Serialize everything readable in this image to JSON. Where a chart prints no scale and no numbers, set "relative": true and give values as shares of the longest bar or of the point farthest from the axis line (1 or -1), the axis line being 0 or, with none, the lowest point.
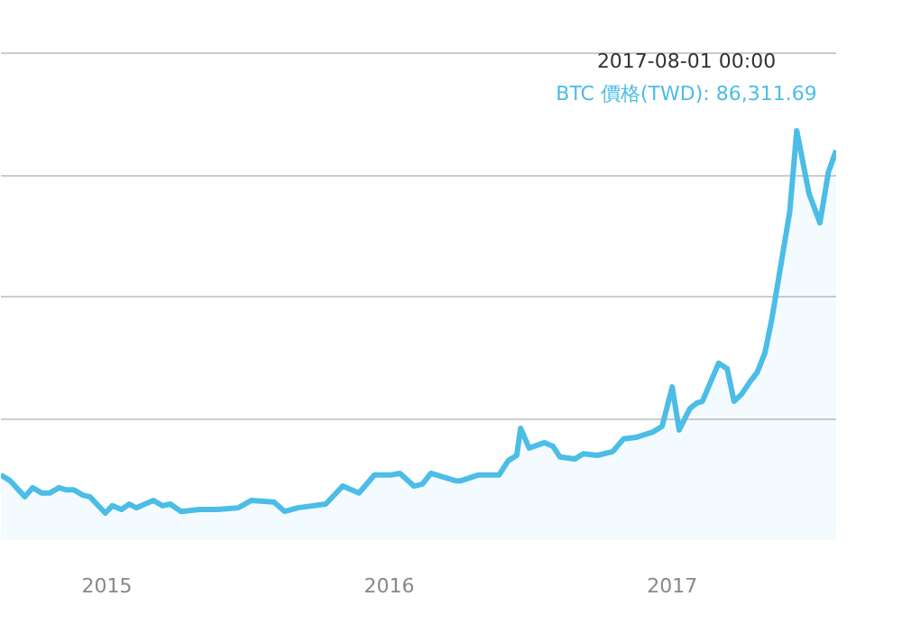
{
  "chart_data": {
    "type": "area",
    "relative": true,
    "grid": "y",
    "marker": "none",
    "line_style": "solid",
    "xlim": [
      "2014-08-17",
      "2017-08-01"
    ],
    "xticks": [
      {
        "value": "2015-01-01",
        "label": "2015"
      },
      {
        "value": "2016-01-01",
        "label": "2016"
      },
      {
        "value": "2017-01-01",
        "label": "2017"
      }
    ],
    "annotations": [
      "2017-08-01 00:00",
      "BTC 價格(TWD): 86,311.69"
    ],
    "x": [
      "2014-08-17",
      "2014-08-29",
      "2014-09-17",
      "2014-09-27",
      "2014-10-09",
      "2014-10-19",
      "2014-10-31",
      "2014-11-09",
      "2014-11-19",
      "2014-12-01",
      "2014-12-10",
      "2014-12-30",
      "2015-01-08",
      "2015-01-20",
      "2015-01-30",
      "2015-02-08",
      "2015-03-02",
      "2015-03-14",
      "2015-03-24",
      "2015-04-07",
      "2015-05-01",
      "2015-05-25",
      "2015-06-20",
      "2015-07-07",
      "2015-08-05",
      "2015-08-19",
      "2015-09-05",
      "2015-10-11",
      "2015-11-02",
      "2015-11-23",
      "2015-12-13",
      "2016-01-03",
      "2016-01-15",
      "2016-02-02",
      "2016-02-13",
      "2016-02-24",
      "2016-03-27",
      "2016-04-03",
      "2016-04-25",
      "2016-05-22",
      "2016-06-03",
      "2016-06-14",
      "2016-06-19",
      "2016-06-30",
      "2016-07-20",
      "2016-07-31",
      "2016-08-09",
      "2016-08-28",
      "2016-09-08",
      "2016-09-26",
      "2016-10-16",
      "2016-10-30",
      "2016-11-15",
      "2016-12-07",
      "2016-12-19",
      "2017-01-01",
      "2017-01-10",
      "2017-01-24",
      "2017-02-02",
      "2017-02-09",
      "2017-03-02",
      "2017-03-13",
      "2017-03-22",
      "2017-04-01",
      "2017-04-12",
      "2017-04-21",
      "2017-05-01",
      "2017-05-10",
      "2017-06-02",
      "2017-06-11",
      "2017-06-27",
      "2017-07-11",
      "2017-07-22",
      "2017-08-01"
    ],
    "series": [
      {
        "color": "#4bbde6",
        "values": [
          0.159,
          0.145,
          0.106,
          0.128,
          0.115,
          0.115,
          0.128,
          0.123,
          0.123,
          0.11,
          0.106,
          0.066,
          0.084,
          0.075,
          0.088,
          0.079,
          0.097,
          0.084,
          0.088,
          0.07,
          0.075,
          0.075,
          0.079,
          0.097,
          0.093,
          0.07,
          0.079,
          0.088,
          0.132,
          0.115,
          0.159,
          0.159,
          0.163,
          0.132,
          0.137,
          0.163,
          0.145,
          0.145,
          0.159,
          0.159,
          0.194,
          0.207,
          0.273,
          0.225,
          0.238,
          0.229,
          0.203,
          0.198,
          0.211,
          0.207,
          0.216,
          0.247,
          0.251,
          0.264,
          0.278,
          0.374,
          0.269,
          0.322,
          0.335,
          0.339,
          0.432,
          0.419,
          0.339,
          0.357,
          0.388,
          0.41,
          0.458,
          0.542,
          0.802,
          1,
          0.846,
          0.775,
          0.899,
          0.952
        ]
      }
    ]
  }
}
